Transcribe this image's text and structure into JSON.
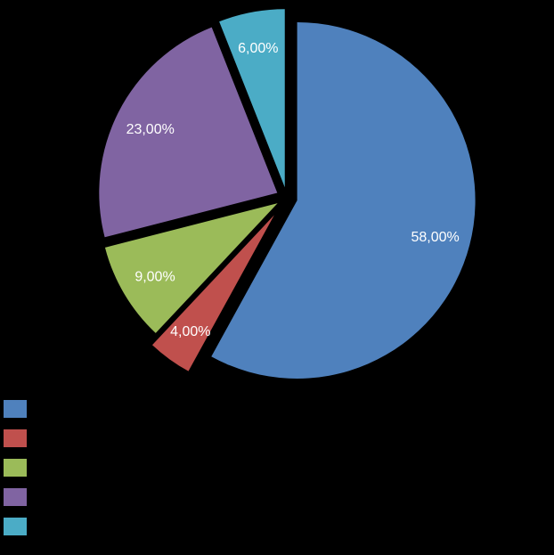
{
  "background_color": "#000000",
  "chart_data": {
    "type": "pie",
    "values": [
      58,
      4,
      9,
      23,
      6
    ],
    "labels": [
      "58,00%",
      "4,00%",
      "9,00%",
      "23,00%",
      "6,00%"
    ],
    "colors": [
      "#4F81BD",
      "#C0504D",
      "#9BBB59",
      "#8064A2",
      "#4BACC6"
    ],
    "start_angle_deg": 0,
    "direction": "clockwise",
    "exploded": true,
    "label_color": "#FFFFFF",
    "legend_position": "bottom-left",
    "legend_labels_visible": false,
    "title": ""
  }
}
